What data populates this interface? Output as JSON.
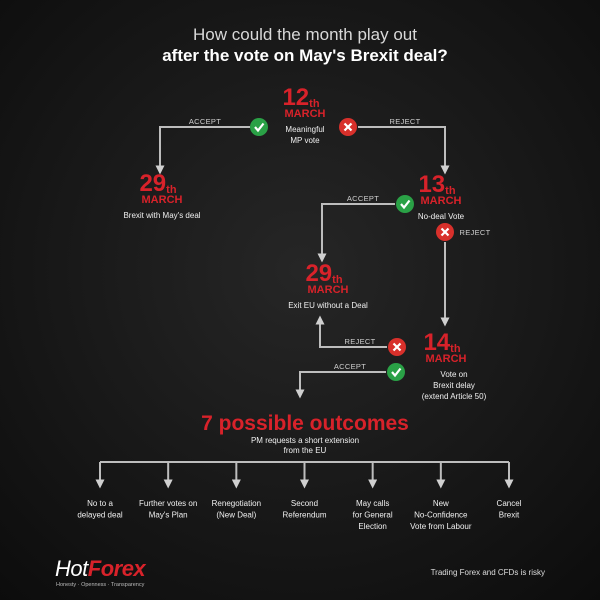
{
  "header": {
    "title": [
      "How could the month play out",
      "after the vote on May's Brexit deal?"
    ]
  },
  "nodes": [
    {
      "day": "12",
      "suffix": "th",
      "month": "MARCH",
      "desc": [
        "Meaningful",
        "MP vote"
      ]
    },
    {
      "day": "29",
      "suffix": "th",
      "month": "MARCH",
      "desc": [
        "Brexit with May's deal"
      ]
    },
    {
      "day": "13",
      "suffix": "th",
      "month": "MARCH",
      "desc": [
        "No-deal Vote"
      ]
    },
    {
      "day": "29",
      "suffix": "th",
      "month": "MARCH",
      "desc": [
        "Exit EU without a Deal"
      ]
    },
    {
      "day": "14",
      "suffix": "th",
      "month": "MARCH",
      "desc": [
        "Vote on",
        "Brexit delay",
        "(extend Article 50)"
      ]
    }
  ],
  "edges": [
    "ACCEPT",
    "REJECT",
    "ACCEPT",
    "REJECT",
    "REJECT",
    "ACCEPT"
  ],
  "outcomes": {
    "heading": "7 possible outcomes",
    "subtitle": [
      "PM requests a short extension",
      "from the EU"
    ],
    "items": [
      [
        "No to a",
        "delayed deal"
      ],
      [
        "Further votes on",
        "May's Plan"
      ],
      [
        "Renegotiation",
        "(New Deal)"
      ],
      [
        "Second",
        "Referendum"
      ],
      [
        "May calls",
        "for General",
        "Election"
      ],
      [
        "New",
        "No-Confidence",
        "Vote from Labour"
      ],
      [
        "Cancel",
        "Brexit"
      ]
    ]
  },
  "footer": {
    "logo": [
      "Hot",
      "Forex"
    ],
    "tagline": "Honesty · Openness · Transparency",
    "disclaimer": "Trading Forex and CFDs is risky"
  }
}
